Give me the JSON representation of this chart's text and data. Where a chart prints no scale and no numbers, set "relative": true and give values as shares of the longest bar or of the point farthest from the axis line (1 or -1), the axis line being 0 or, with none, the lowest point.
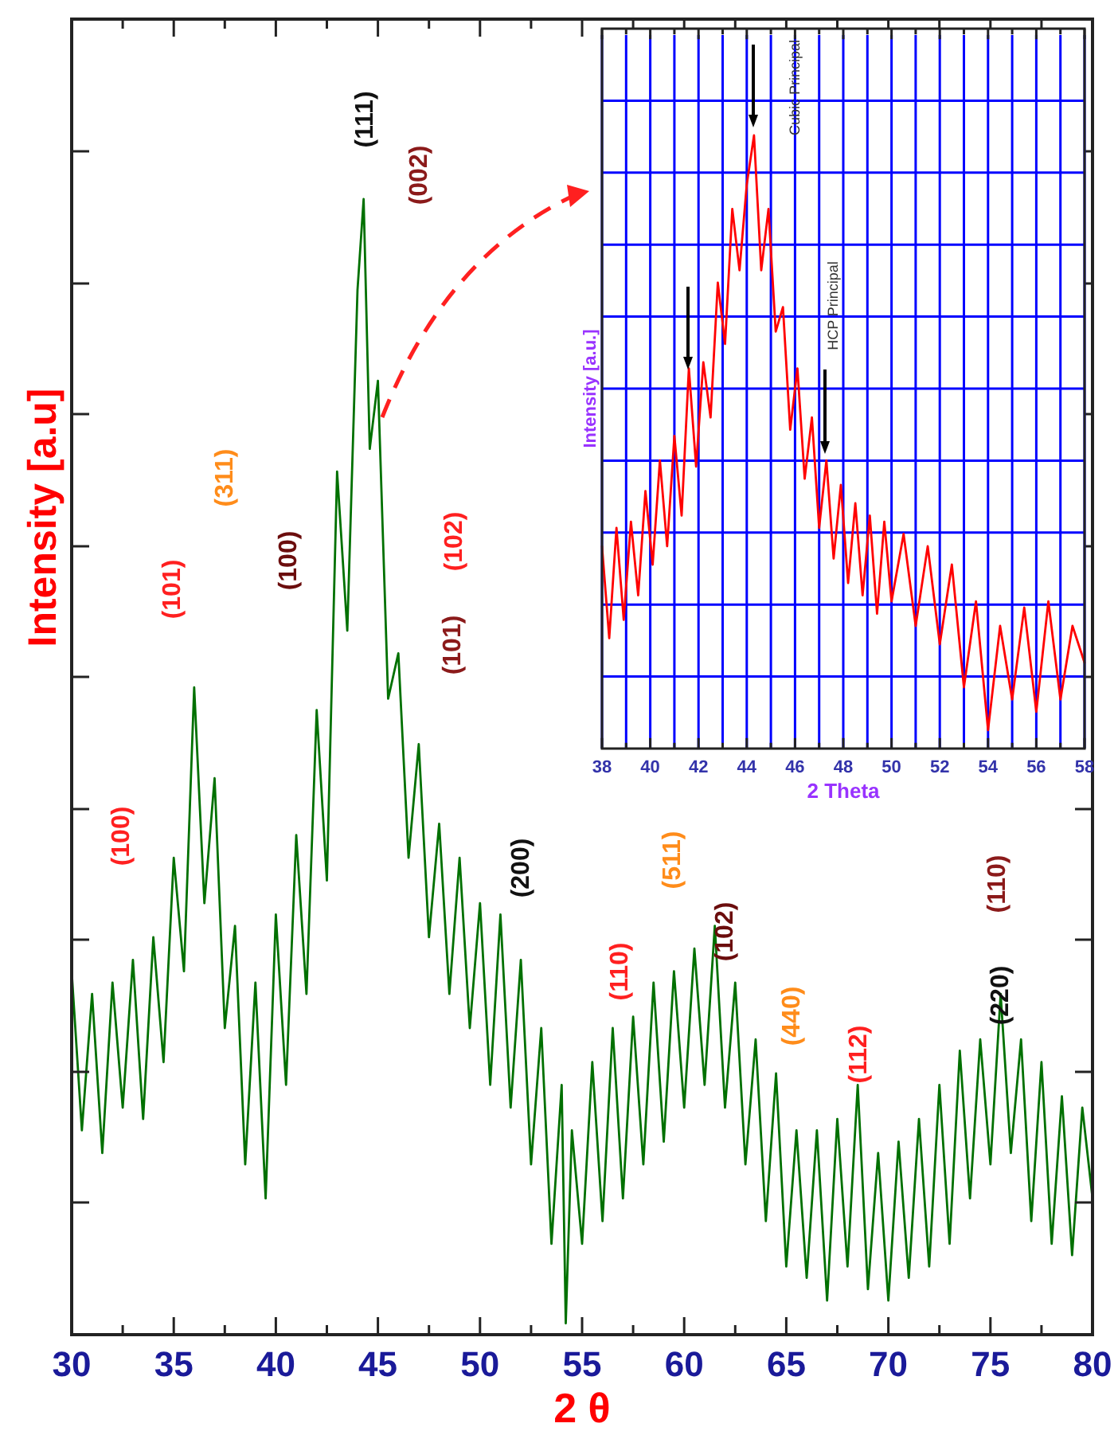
{
  "chart_data": [
    {
      "type": "line",
      "relative": true,
      "xlabel": "2 θ",
      "ylabel": "Intensity [a.u]",
      "xlim": [
        30,
        80
      ],
      "tick_labels": "x",
      "xticks": [
        30,
        {
          "value": 32.5,
          "label": null
        },
        35,
        {
          "value": 37.5,
          "label": null
        },
        40,
        {
          "value": 42.5,
          "label": null
        },
        45,
        {
          "value": 47.5,
          "label": null
        },
        50,
        {
          "value": 52.5,
          "label": null
        },
        55,
        {
          "value": 57.5,
          "label": null
        },
        60,
        {
          "value": 62.5,
          "label": null
        },
        65,
        {
          "value": 67.5,
          "label": null
        },
        70,
        {
          "value": 72.5,
          "label": null
        },
        75,
        {
          "value": 77.5,
          "label": null
        },
        80
      ],
      "series": [
        {
          "color": "#007000",
          "x": [
            30,
            30.5,
            31,
            31.5,
            32,
            32.5,
            33,
            33.5,
            34,
            34.5,
            35,
            35.5,
            36,
            36.5,
            37,
            37.5,
            38,
            38.5,
            39,
            39.5,
            40,
            40.5,
            41,
            41.5,
            42,
            42.5,
            43,
            43.5,
            44,
            44.3,
            44.6,
            45,
            45.5,
            46,
            46.5,
            47,
            47.5,
            48,
            48.5,
            49,
            49.5,
            50,
            50.5,
            51,
            51.5,
            52,
            52.5,
            53,
            53.5,
            54,
            54.2,
            54.5,
            55,
            55.5,
            56,
            56.5,
            57,
            57.5,
            58,
            58.5,
            59,
            59.5,
            60,
            60.5,
            61,
            61.5,
            62,
            62.5,
            63,
            63.5,
            64,
            64.5,
            65,
            65.5,
            66,
            66.5,
            67,
            67.5,
            68,
            68.5,
            69,
            69.5,
            70,
            70.5,
            71,
            71.5,
            72,
            72.5,
            73,
            73.5,
            74,
            74.5,
            75,
            75.5,
            76,
            76.5,
            77,
            77.5,
            78,
            78.5,
            79,
            79.5,
            80
          ],
          "values": [
            0.32,
            0.18,
            0.3,
            0.16,
            0.31,
            0.2,
            0.33,
            0.19,
            0.35,
            0.24,
            0.42,
            0.32,
            0.57,
            0.38,
            0.49,
            0.27,
            0.36,
            0.15,
            0.31,
            0.12,
            0.37,
            0.22,
            0.44,
            0.3,
            0.55,
            0.4,
            0.76,
            0.62,
            0.92,
            1.0,
            0.78,
            0.84,
            0.56,
            0.6,
            0.42,
            0.52,
            0.35,
            0.45,
            0.3,
            0.42,
            0.27,
            0.38,
            0.22,
            0.37,
            0.2,
            0.33,
            0.15,
            0.27,
            0.08,
            0.22,
            0.01,
            0.18,
            0.08,
            0.24,
            0.1,
            0.27,
            0.12,
            0.28,
            0.15,
            0.31,
            0.17,
            0.32,
            0.2,
            0.34,
            0.22,
            0.36,
            0.2,
            0.31,
            0.15,
            0.26,
            0.1,
            0.23,
            0.06,
            0.18,
            0.05,
            0.18,
            0.03,
            0.19,
            0.06,
            0.22,
            0.04,
            0.16,
            0.03,
            0.17,
            0.05,
            0.19,
            0.06,
            0.22,
            0.08,
            0.25,
            0.12,
            0.26,
            0.15,
            0.3,
            0.16,
            0.26,
            0.1,
            0.24,
            0.08,
            0.21,
            0.07,
            0.2,
            0.12
          ]
        }
      ],
      "annotations": [
        "(100)",
        "(101)",
        "(311)",
        "(100)",
        "(111)",
        "(002)",
        "(102)",
        "(101)",
        "(200)",
        "(110)",
        "(511)",
        "(102)",
        "(440)",
        "(112)",
        "(110)",
        "(220)"
      ]
    },
    {
      "type": "line",
      "relative": true,
      "xlabel": "2 Theta",
      "ylabel": "Intensity [a.u.]",
      "xlim": [
        38,
        58
      ],
      "tick_labels": "x",
      "grid": true,
      "xticks": [
        38,
        {
          "value": 39,
          "label": null
        },
        40,
        {
          "value": 41,
          "label": null
        },
        42,
        {
          "value": 43,
          "label": null
        },
        44,
        {
          "value": 45,
          "label": null
        },
        46,
        {
          "value": 47,
          "label": null
        },
        48,
        {
          "value": 49,
          "label": null
        },
        50,
        {
          "value": 51,
          "label": null
        },
        52,
        {
          "value": 53,
          "label": null
        },
        54,
        {
          "value": 55,
          "label": null
        },
        56,
        {
          "value": 57,
          "label": null
        },
        58
      ],
      "series": [
        {
          "color": "#ff0000",
          "x": [
            38,
            38.3,
            38.6,
            38.9,
            39.2,
            39.5,
            39.8,
            40.1,
            40.4,
            40.7,
            41,
            41.3,
            41.6,
            41.9,
            42.2,
            42.5,
            42.8,
            43.1,
            43.4,
            43.7,
            44,
            44.3,
            44.6,
            44.9,
            45.2,
            45.5,
            45.8,
            46.1,
            46.4,
            46.7,
            47,
            47.3,
            47.6,
            47.9,
            48.2,
            48.5,
            48.8,
            49.1,
            49.4,
            49.7,
            50,
            50.5,
            51,
            51.5,
            52,
            52.5,
            53,
            53.5,
            54,
            54.5,
            55,
            55.5,
            56,
            56.5,
            57,
            57.5,
            58
          ],
          "values": [
            0.33,
            0.18,
            0.36,
            0.21,
            0.37,
            0.25,
            0.42,
            0.3,
            0.47,
            0.33,
            0.51,
            0.38,
            0.62,
            0.46,
            0.63,
            0.54,
            0.76,
            0.66,
            0.88,
            0.78,
            0.92,
            1.0,
            0.78,
            0.88,
            0.68,
            0.72,
            0.52,
            0.62,
            0.44,
            0.54,
            0.36,
            0.47,
            0.31,
            0.43,
            0.27,
            0.4,
            0.25,
            0.38,
            0.22,
            0.37,
            0.24,
            0.35,
            0.2,
            0.33,
            0.17,
            0.3,
            0.1,
            0.24,
            0.03,
            0.2,
            0.08,
            0.23,
            0.06,
            0.24,
            0.08,
            0.2,
            0.14
          ]
        }
      ],
      "annotations": [
        "Cubic Principal",
        "HCP Principal"
      ]
    }
  ]
}
